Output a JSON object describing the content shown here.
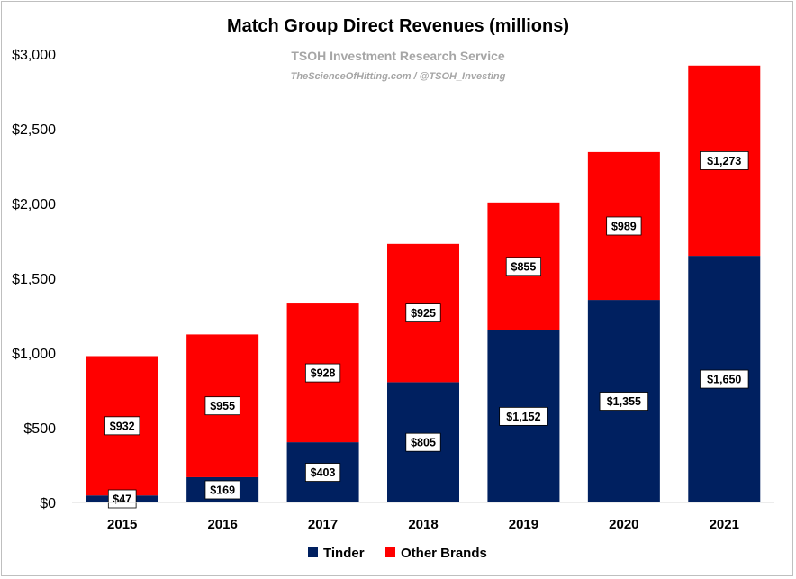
{
  "chart_data": {
    "type": "bar",
    "stacked": true,
    "title": "Match Group Direct Revenues (millions)",
    "watermark": {
      "line1": "TSOH Investment Research Service",
      "line2": "TheScienceOfHitting.com / @TSOH_Investing"
    },
    "categories": [
      "2015",
      "2016",
      "2017",
      "2018",
      "2019",
      "2020",
      "2021"
    ],
    "series": [
      {
        "name": "Tinder",
        "color": "#002060",
        "values": [
          47,
          169,
          403,
          805,
          1152,
          1355,
          1650
        ],
        "labels": [
          "$47",
          "$169",
          "$403",
          "$805",
          "$1,152",
          "$1,355",
          "$1,650"
        ]
      },
      {
        "name": "Other Brands",
        "color": "#ff0000",
        "values": [
          932,
          955,
          928,
          925,
          855,
          989,
          1273
        ],
        "labels": [
          "$932",
          "$955",
          "$928",
          "$925",
          "$855",
          "$989",
          "$1,273"
        ]
      }
    ],
    "ylim": [
      0,
      3000
    ],
    "yticks": [
      0,
      500,
      1000,
      1500,
      2000,
      2500,
      3000
    ],
    "ytick_labels": [
      "$0",
      "$500",
      "$1,000",
      "$1,500",
      "$2,000",
      "$2,500",
      "$3,000"
    ],
    "grid": false,
    "legend": "bottom"
  }
}
